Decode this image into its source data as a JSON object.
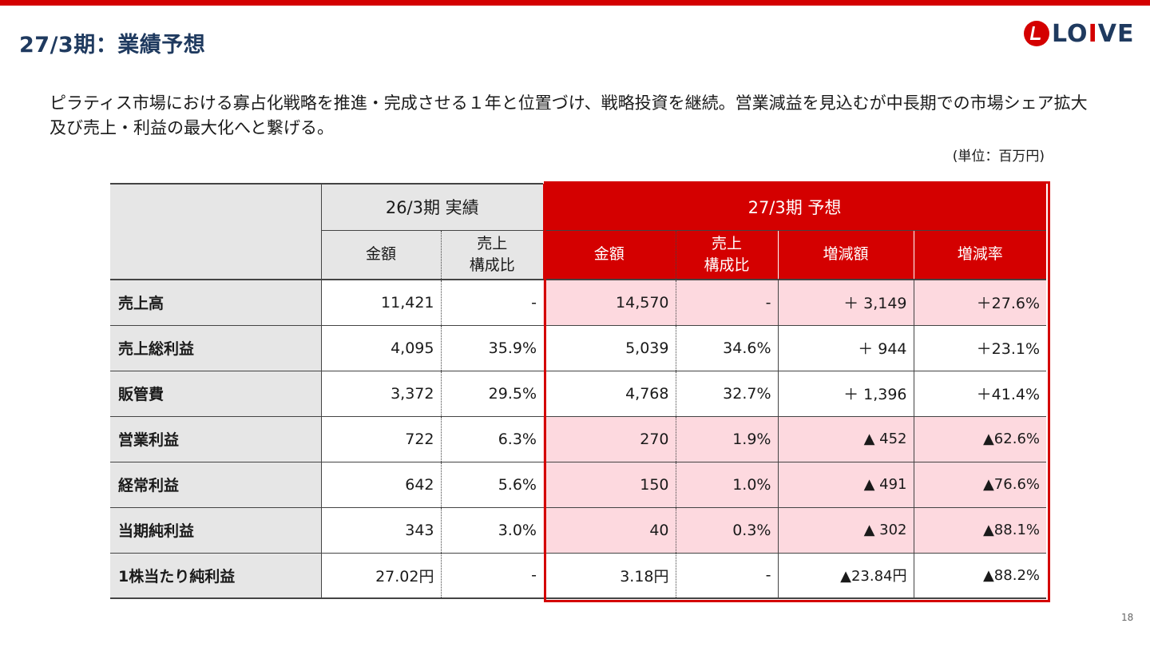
{
  "header": {
    "title": "27/3期：業績予想",
    "logo_text": "LOIVE",
    "brand_color": "#d40000",
    "title_color": "#1f3a5f"
  },
  "summary": "ピラティス市場における寡占化戦略を推進・完成させる１年と位置づけ、戦略投資を継続。営業減益を見込むが中長期での市場シェア拡大及び売上・利益の最大化へと繋げる。",
  "unit_note": "(単位：百万円)",
  "table": {
    "group_headers": {
      "actual": "26/3期 実績",
      "forecast": "27/3期 予想"
    },
    "sub_headers": {
      "actual_amount": "金額",
      "actual_ratio_line1": "売上",
      "actual_ratio_line2": "構成比",
      "forecast_amount": "金額",
      "forecast_ratio_line1": "売上",
      "forecast_ratio_line2": "構成比",
      "change_amount": "増減額",
      "change_rate": "増減率"
    },
    "rows": [
      {
        "label": "売上高",
        "act_amount": "11,421",
        "act_ratio": "-",
        "fc_amount": "14,570",
        "fc_ratio": "-",
        "chg_amount": "＋ 3,149",
        "chg_rate": "＋27.6%"
      },
      {
        "label": "売上総利益",
        "act_amount": "4,095",
        "act_ratio": "35.9%",
        "fc_amount": "5,039",
        "fc_ratio": "34.6%",
        "chg_amount": "＋ 944",
        "chg_rate": "＋23.1%"
      },
      {
        "label": "販管費",
        "act_amount": "3,372",
        "act_ratio": "29.5%",
        "fc_amount": "4,768",
        "fc_ratio": "32.7%",
        "chg_amount": "＋ 1,396",
        "chg_rate": "＋41.4%"
      },
      {
        "label": "営業利益",
        "act_amount": "722",
        "act_ratio": "6.3%",
        "fc_amount": "270",
        "fc_ratio": "1.9%",
        "chg_amount": "▲ 452",
        "chg_rate": "▲62.6%"
      },
      {
        "label": "経常利益",
        "act_amount": "642",
        "act_ratio": "5.6%",
        "fc_amount": "150",
        "fc_ratio": "1.0%",
        "chg_amount": "▲ 491",
        "chg_rate": "▲76.6%"
      },
      {
        "label": "当期純利益",
        "act_amount": "343",
        "act_ratio": "3.0%",
        "fc_amount": "40",
        "fc_ratio": "0.3%",
        "chg_amount": "▲ 302",
        "chg_rate": "▲88.1%"
      },
      {
        "label": "1株当たり純利益",
        "act_amount": "27.02円",
        "act_ratio": "-",
        "fc_amount": "3.18円",
        "fc_ratio": "-",
        "chg_amount": "▲23.84円",
        "chg_rate": "▲88.2%"
      }
    ]
  },
  "page_number": "18"
}
